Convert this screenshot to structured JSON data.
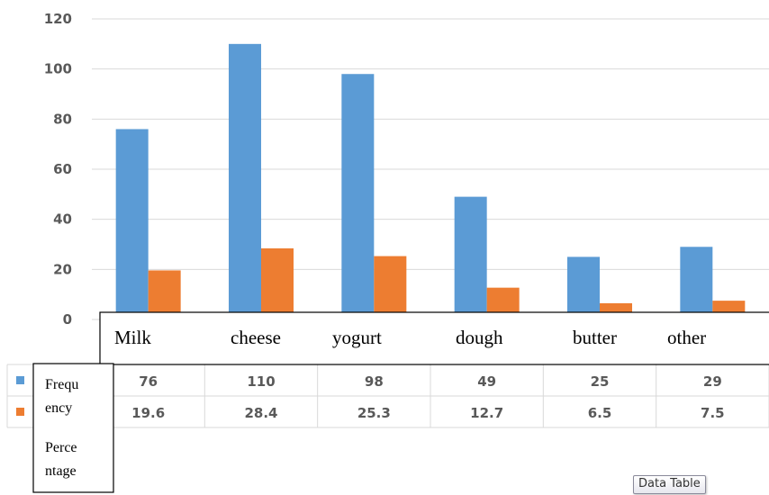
{
  "chart_data": {
    "type": "bar",
    "categories": [
      "Milk",
      "cheese",
      "yogurt",
      "dough",
      "butter",
      "other"
    ],
    "series": [
      {
        "values": [
          76,
          110,
          98,
          49,
          25,
          29
        ],
        "color": "#5b9bd5"
      },
      {
        "values": [
          19.6,
          28.4,
          25.3,
          12.7,
          6.5,
          7.5
        ],
        "color": "#ed7d31"
      }
    ],
    "series_labels_text": [
      "Frequ",
      "ency",
      "Perce",
      "ntage"
    ],
    "yticks": [
      "0",
      "20",
      "40",
      "60",
      "80",
      "100",
      "120"
    ],
    "ylim": [
      0,
      120
    ],
    "grid": true,
    "legend": "data-table"
  },
  "data_table": {
    "rows": [
      [
        "76",
        "110",
        "98",
        "49",
        "25",
        "29"
      ],
      [
        "19.6",
        "28.4",
        "25.3",
        "12.7",
        "6.5",
        "7.5"
      ]
    ]
  },
  "tooltip": "Data Table"
}
